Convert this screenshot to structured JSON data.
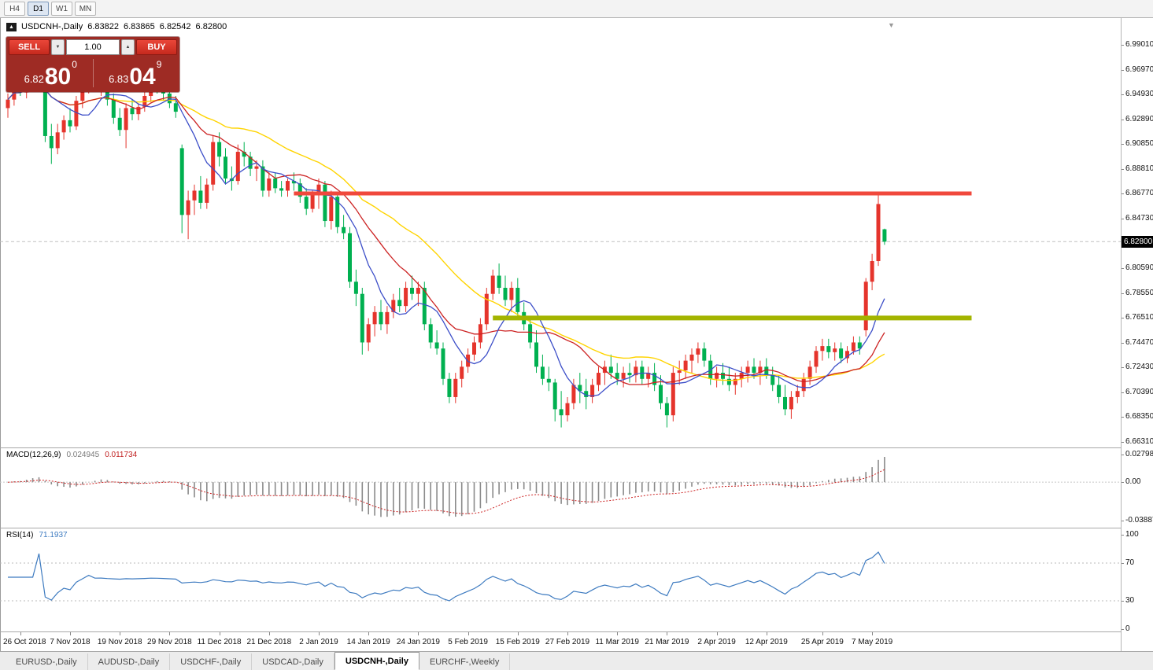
{
  "colors": {
    "bull": "#e5342c",
    "bear": "#00b050",
    "ma_slow": "#ffd400",
    "ma_mid": "#cc2222",
    "ma_fast": "#3c4ec8",
    "resistance": "#f0483c",
    "support": "#a3b400",
    "macd_hist": "#8a8a8a",
    "macd_signal": "#cc2222",
    "rsi_line": "#3e7bc0",
    "current_price_line": "#c0c0c0"
  },
  "icons": {
    "expand_marker": "▲",
    "shift_marker": "▼",
    "spin_down": "▼",
    "spin_up": "▲"
  },
  "toolbar": {
    "timeframes": [
      {
        "label": "H4",
        "active": false
      },
      {
        "label": "D1",
        "active": true
      },
      {
        "label": "W1",
        "active": false
      },
      {
        "label": "MN",
        "active": false
      }
    ]
  },
  "chart_header": {
    "symbol": "USDCNH-,Daily",
    "open": "6.83822",
    "high": "6.83865",
    "low": "6.82542",
    "close": "6.82800"
  },
  "trade_panel": {
    "sell_label": "SELL",
    "buy_label": "BUY",
    "lot_value": "1.00",
    "sell_price": {
      "small": "6.82",
      "big": "80",
      "sup": "0"
    },
    "buy_price": {
      "small": "6.83",
      "big": "04",
      "sup": "9"
    }
  },
  "indicators": {
    "macd": {
      "name": "MACD(12,26,9)",
      "value1": "0.024945",
      "value2": "0.011734"
    },
    "rsi": {
      "name": "RSI(14)",
      "value": "71.1937"
    }
  },
  "price_axis": {
    "labels": [
      "6.99010",
      "6.96970",
      "6.94930",
      "6.92890",
      "6.90850",
      "6.88810",
      "6.86770",
      "6.84730",
      "6.80590",
      "6.78550",
      "6.76510",
      "6.74470",
      "6.72430",
      "6.70390",
      "6.68350",
      "6.66310"
    ],
    "current_label": "6.82800"
  },
  "macd_axis": [
    {
      "value": 0.027984,
      "label": "0.027984"
    },
    {
      "value": 0,
      "label": "0.00"
    },
    {
      "value": -0.038874,
      "label": "-0.038874"
    }
  ],
  "rsi_axis": [
    {
      "value": 100,
      "label": "100"
    },
    {
      "value": 70,
      "label": "70"
    },
    {
      "value": 30,
      "label": "30"
    },
    {
      "value": 0,
      "label": "0"
    }
  ],
  "date_axis": {
    "ticks": [
      {
        "i": 2,
        "label": "26 Oct 2018"
      },
      {
        "i": 10,
        "label": "7 Nov 2018"
      },
      {
        "i": 18,
        "label": "19 Nov 2018"
      },
      {
        "i": 26,
        "label": "29 Nov 2018"
      },
      {
        "i": 34,
        "label": "11 Dec 2018"
      },
      {
        "i": 42,
        "label": "21 Dec 2018"
      },
      {
        "i": 50,
        "label": "2 Jan 2019"
      },
      {
        "i": 58,
        "label": "14 Jan 2019"
      },
      {
        "i": 66,
        "label": "24 Jan 2019"
      },
      {
        "i": 74,
        "label": "5 Feb 2019"
      },
      {
        "i": 82,
        "label": "15 Feb 2019"
      },
      {
        "i": 90,
        "label": "27 Feb 2019"
      },
      {
        "i": 98,
        "label": "11 Mar 2019"
      },
      {
        "i": 106,
        "label": "21 Mar 2019"
      },
      {
        "i": 114,
        "label": "2 Apr 2019"
      },
      {
        "i": 122,
        "label": "12 Apr 2019"
      },
      {
        "i": 131,
        "label": "25 Apr 2019"
      },
      {
        "i": 139,
        "label": "7 May 2019"
      }
    ]
  },
  "tabs": [
    {
      "label": "EURUSD-,Daily",
      "active": false
    },
    {
      "label": "AUDUSD-,Daily",
      "active": false
    },
    {
      "label": "USDCHF-,Daily",
      "active": false
    },
    {
      "label": "USDCAD-,Daily",
      "active": false
    },
    {
      "label": "USDCNH-,Daily",
      "active": true
    },
    {
      "label": "EURCHF-,Weekly",
      "active": false
    }
  ],
  "chart_data": {
    "type": "candlestick",
    "title": "USDCNH- Daily",
    "ylim": [
      6.6637,
      6.9901
    ],
    "x0": 10,
    "dx": 7.9,
    "current_price": 6.828,
    "ma_windows": {
      "fast": 8,
      "mid": 16,
      "slow": 30
    },
    "lines": [
      {
        "price": 6.8677,
        "from_i": 46,
        "to_i": 155,
        "color": "resistance",
        "width": 5
      },
      {
        "price": 6.7651,
        "from_i": 78,
        "to_i": 155,
        "color": "support",
        "width": 6
      }
    ],
    "macd_range": [
      -0.038874,
      0.027984
    ],
    "rsi_levels": [
      70,
      30
    ],
    "ohlc": [
      [
        6.938,
        6.95,
        6.93,
        6.945
      ],
      [
        6.945,
        6.96,
        6.94,
        6.956
      ],
      [
        6.956,
        6.964,
        6.948,
        6.951
      ],
      [
        6.951,
        6.969,
        6.946,
        6.965
      ],
      [
        6.965,
        6.976,
        6.958,
        6.972
      ],
      [
        6.972,
        6.978,
        6.964,
        6.969
      ],
      [
        6.969,
        6.97,
        6.91,
        6.915
      ],
      [
        6.915,
        6.925,
        6.892,
        6.905
      ],
      [
        6.905,
        6.925,
        6.9,
        6.918
      ],
      [
        6.918,
        6.932,
        6.912,
        6.928
      ],
      [
        6.928,
        6.938,
        6.918,
        6.923
      ],
      [
        6.923,
        6.948,
        6.92,
        6.944
      ],
      [
        6.944,
        6.96,
        6.938,
        6.956
      ],
      [
        6.956,
        6.975,
        6.95,
        6.97
      ],
      [
        6.97,
        6.978,
        6.955,
        6.96
      ],
      [
        6.96,
        6.97,
        6.948,
        6.965
      ],
      [
        6.965,
        6.972,
        6.94,
        6.945
      ],
      [
        6.945,
        6.95,
        6.925,
        6.93
      ],
      [
        6.93,
        6.938,
        6.915,
        6.92
      ],
      [
        6.92,
        6.942,
        6.905,
        6.938
      ],
      [
        6.938,
        6.945,
        6.928,
        6.933
      ],
      [
        6.933,
        6.942,
        6.928,
        6.939
      ],
      [
        6.939,
        6.952,
        6.935,
        6.948
      ],
      [
        6.948,
        6.962,
        6.943,
        6.958
      ],
      [
        6.958,
        6.965,
        6.95,
        6.956
      ],
      [
        6.956,
        6.964,
        6.944,
        6.95
      ],
      [
        6.95,
        6.956,
        6.938,
        6.942
      ],
      [
        6.942,
        6.948,
        6.93,
        6.935
      ],
      [
        6.905,
        6.908,
        6.835,
        6.85
      ],
      [
        6.85,
        6.87,
        6.83,
        6.862
      ],
      [
        6.862,
        6.875,
        6.85,
        6.87
      ],
      [
        6.87,
        6.882,
        6.855,
        6.86
      ],
      [
        6.86,
        6.88,
        6.855,
        6.875
      ],
      [
        6.875,
        6.915,
        6.87,
        6.91
      ],
      [
        6.91,
        6.918,
        6.89,
        6.898
      ],
      [
        6.898,
        6.905,
        6.875,
        6.88
      ],
      [
        6.88,
        6.89,
        6.87,
        6.878
      ],
      [
        6.878,
        6.908,
        6.875,
        6.902
      ],
      [
        6.902,
        6.91,
        6.89,
        6.898
      ],
      [
        6.898,
        6.902,
        6.882,
        6.888
      ],
      [
        6.888,
        6.895,
        6.878,
        6.89
      ],
      [
        6.89,
        6.895,
        6.865,
        6.87
      ],
      [
        6.87,
        6.885,
        6.865,
        6.88
      ],
      [
        6.88,
        6.885,
        6.868,
        6.872
      ],
      [
        6.872,
        6.878,
        6.865,
        6.87
      ],
      [
        6.87,
        6.88,
        6.865,
        6.878
      ],
      [
        6.878,
        6.885,
        6.87,
        6.876
      ],
      [
        6.876,
        6.88,
        6.86,
        6.865
      ],
      [
        6.865,
        6.872,
        6.85,
        6.855
      ],
      [
        6.855,
        6.87,
        6.852,
        6.868
      ],
      [
        6.868,
        6.88,
        6.855,
        6.875
      ],
      [
        6.875,
        6.878,
        6.84,
        6.845
      ],
      [
        6.845,
        6.87,
        6.838,
        6.865
      ],
      [
        6.865,
        6.868,
        6.835,
        6.84
      ],
      [
        6.84,
        6.85,
        6.83,
        6.835
      ],
      [
        6.835,
        6.84,
        6.79,
        6.795
      ],
      [
        6.795,
        6.805,
        6.775,
        6.785
      ],
      [
        6.785,
        6.79,
        6.735,
        6.745
      ],
      [
        6.745,
        6.765,
        6.738,
        6.76
      ],
      [
        6.76,
        6.775,
        6.75,
        6.77
      ],
      [
        6.77,
        6.78,
        6.755,
        6.76
      ],
      [
        6.76,
        6.775,
        6.752,
        6.77
      ],
      [
        6.77,
        6.785,
        6.765,
        6.78
      ],
      [
        6.78,
        6.79,
        6.77,
        6.775
      ],
      [
        6.775,
        6.795,
        6.77,
        6.79
      ],
      [
        6.79,
        6.8,
        6.78,
        6.785
      ],
      [
        6.785,
        6.795,
        6.775,
        6.79
      ],
      [
        6.79,
        6.795,
        6.755,
        6.76
      ],
      [
        6.76,
        6.765,
        6.74,
        6.745
      ],
      [
        6.745,
        6.755,
        6.735,
        6.74
      ],
      [
        6.74,
        6.745,
        6.71,
        6.715
      ],
      [
        6.715,
        6.72,
        6.695,
        6.7
      ],
      [
        6.7,
        6.72,
        6.695,
        6.715
      ],
      [
        6.715,
        6.73,
        6.708,
        6.725
      ],
      [
        6.725,
        6.74,
        6.72,
        6.735
      ],
      [
        6.735,
        6.75,
        6.73,
        6.745
      ],
      [
        6.745,
        6.765,
        6.74,
        6.76
      ],
      [
        6.76,
        6.79,
        6.755,
        6.785
      ],
      [
        6.785,
        6.805,
        6.78,
        6.8
      ],
      [
        6.8,
        6.81,
        6.785,
        6.79
      ],
      [
        6.79,
        6.8,
        6.775,
        6.78
      ],
      [
        6.78,
        6.795,
        6.77,
        6.79
      ],
      [
        6.79,
        6.798,
        6.765,
        6.77
      ],
      [
        6.77,
        6.778,
        6.755,
        6.76
      ],
      [
        6.76,
        6.765,
        6.74,
        6.745
      ],
      [
        6.745,
        6.755,
        6.72,
        6.725
      ],
      [
        6.725,
        6.735,
        6.71,
        6.715
      ],
      [
        6.715,
        6.725,
        6.705,
        6.712
      ],
      [
        6.712,
        6.715,
        6.68,
        6.69
      ],
      [
        6.69,
        6.705,
        6.675,
        6.685
      ],
      [
        6.685,
        6.7,
        6.68,
        6.695
      ],
      [
        6.695,
        6.715,
        6.69,
        6.71
      ],
      [
        6.71,
        6.72,
        6.695,
        6.705
      ],
      [
        6.705,
        6.715,
        6.69,
        6.7
      ],
      [
        6.7,
        6.715,
        6.695,
        6.71
      ],
      [
        6.71,
        6.725,
        6.705,
        6.72
      ],
      [
        6.72,
        6.73,
        6.71,
        6.725
      ],
      [
        6.725,
        6.735,
        6.715,
        6.72
      ],
      [
        6.72,
        6.728,
        6.71,
        6.715
      ],
      [
        6.715,
        6.725,
        6.708,
        6.72
      ],
      [
        6.72,
        6.728,
        6.712,
        6.718
      ],
      [
        6.718,
        6.73,
        6.712,
        6.725
      ],
      [
        6.725,
        6.73,
        6.71,
        6.715
      ],
      [
        6.715,
        6.725,
        6.708,
        6.72
      ],
      [
        6.72,
        6.728,
        6.705,
        6.71
      ],
      [
        6.71,
        6.718,
        6.69,
        6.695
      ],
      [
        6.695,
        6.7,
        6.675,
        6.685
      ],
      [
        6.685,
        6.725,
        6.68,
        6.72
      ],
      [
        6.72,
        6.73,
        6.71,
        6.722
      ],
      [
        6.722,
        6.735,
        6.715,
        6.73
      ],
      [
        6.73,
        6.74,
        6.72,
        6.735
      ],
      [
        6.735,
        6.745,
        6.728,
        6.74
      ],
      [
        6.74,
        6.745,
        6.725,
        6.73
      ],
      [
        6.73,
        6.735,
        6.71,
        6.715
      ],
      [
        6.715,
        6.725,
        6.708,
        6.72
      ],
      [
        6.72,
        6.728,
        6.71,
        6.715
      ],
      [
        6.715,
        6.725,
        6.705,
        6.71
      ],
      [
        6.71,
        6.72,
        6.702,
        6.715
      ],
      [
        6.715,
        6.725,
        6.708,
        6.72
      ],
      [
        6.72,
        6.73,
        6.712,
        6.725
      ],
      [
        6.725,
        6.732,
        6.715,
        6.72
      ],
      [
        6.72,
        6.73,
        6.71,
        6.725
      ],
      [
        6.725,
        6.732,
        6.715,
        6.718
      ],
      [
        6.718,
        6.725,
        6.705,
        6.71
      ],
      [
        6.71,
        6.718,
        6.695,
        6.7
      ],
      [
        6.7,
        6.71,
        6.685,
        6.69
      ],
      [
        6.69,
        6.705,
        6.682,
        6.7
      ],
      [
        6.7,
        6.71,
        6.695,
        6.705
      ],
      [
        6.705,
        6.72,
        6.7,
        6.715
      ],
      [
        6.715,
        6.73,
        6.71,
        6.725
      ],
      [
        6.725,
        6.742,
        6.72,
        6.738
      ],
      [
        6.738,
        6.748,
        6.73,
        6.742
      ],
      [
        6.742,
        6.748,
        6.732,
        6.737
      ],
      [
        6.737,
        6.745,
        6.73,
        6.74
      ],
      [
        6.74,
        6.745,
        6.728,
        6.732
      ],
      [
        6.732,
        6.742,
        6.728,
        6.738
      ],
      [
        6.738,
        6.75,
        6.735,
        6.745
      ],
      [
        6.745,
        6.75,
        6.735,
        6.74
      ],
      [
        6.755,
        6.798,
        6.75,
        6.795
      ],
      [
        6.795,
        6.818,
        6.788,
        6.812
      ],
      [
        6.812,
        6.867,
        6.808,
        6.859
      ],
      [
        6.8382,
        6.8387,
        6.8254,
        6.828
      ]
    ]
  }
}
